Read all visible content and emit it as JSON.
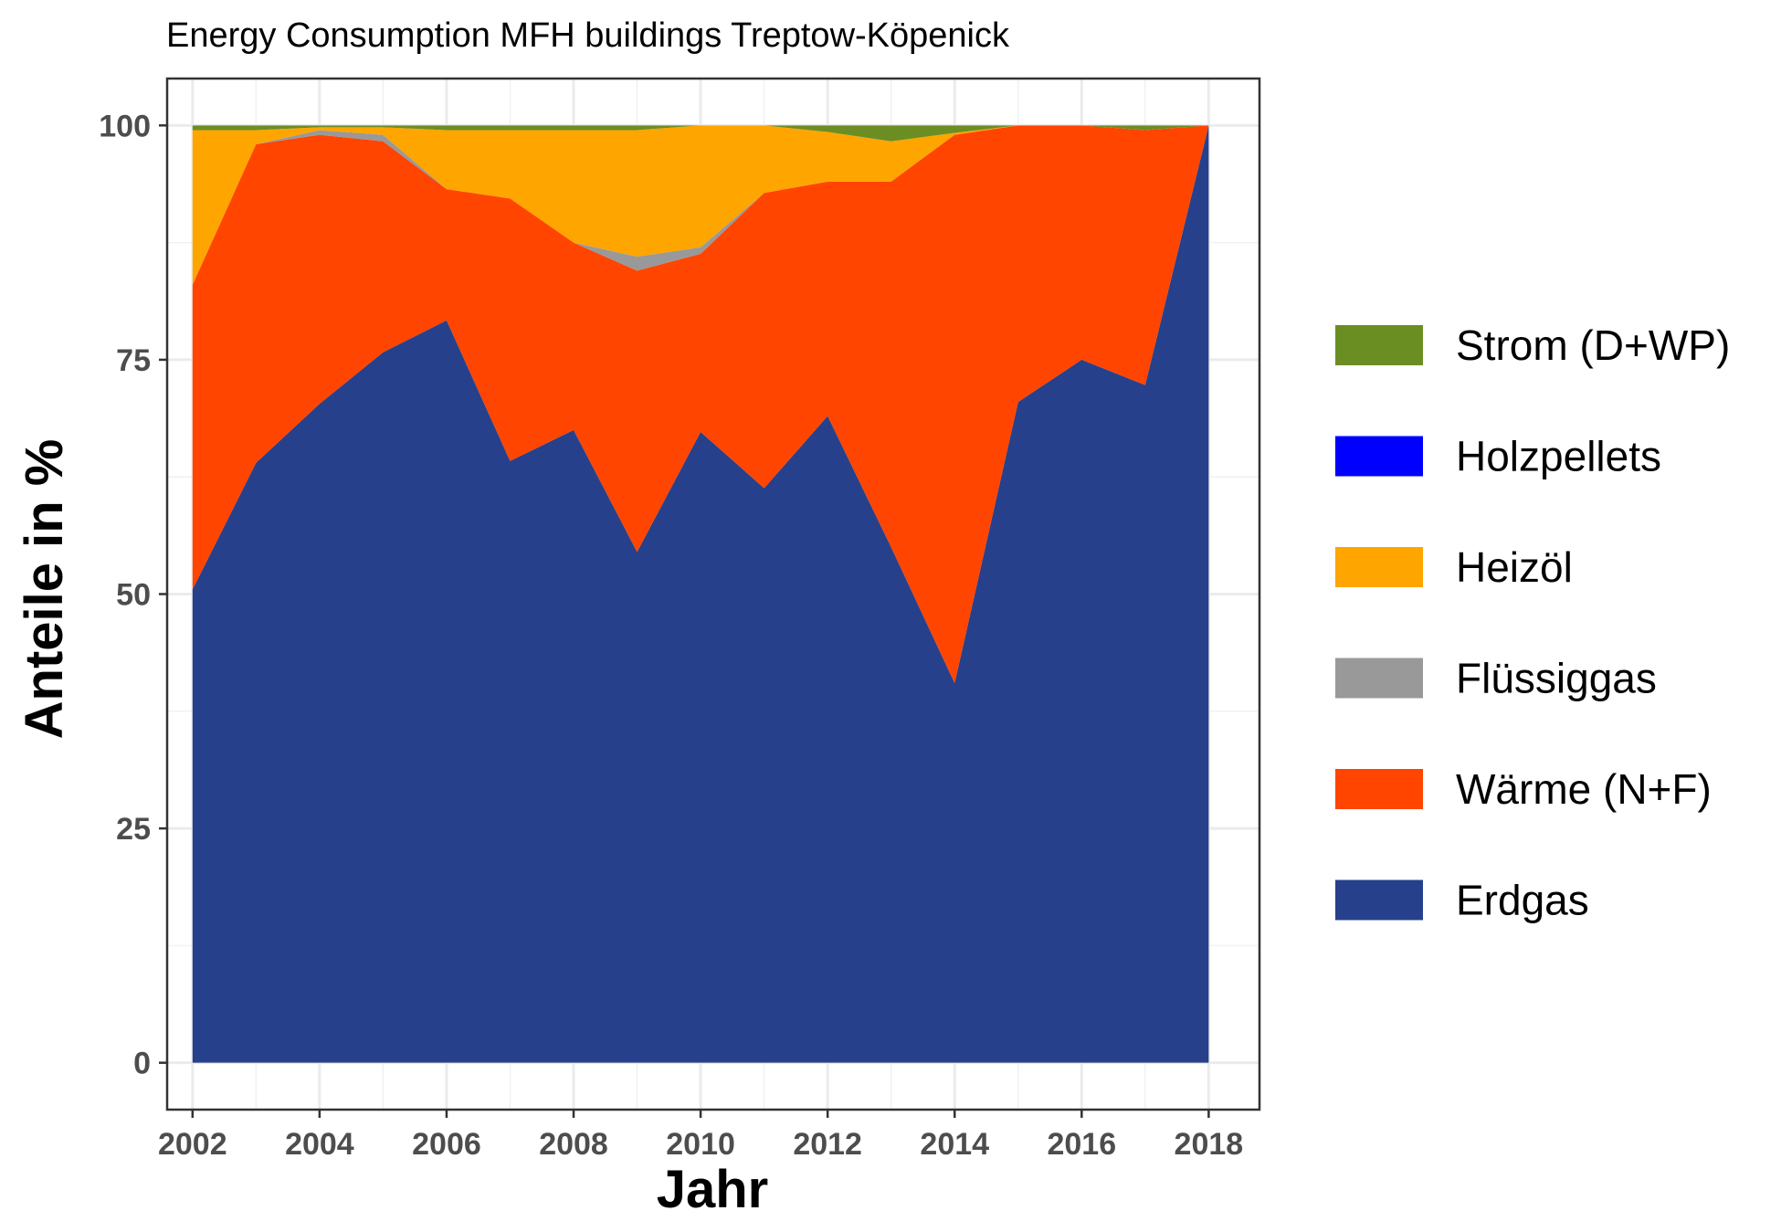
{
  "chart_data": {
    "type": "area",
    "stacked": true,
    "title": "Energy Consumption MFH buildings Treptow-Köpenick",
    "xlabel": "Jahr",
    "ylabel": "Anteile in %",
    "xlim": [
      2001.6,
      2018.8
    ],
    "ylim": [
      -5,
      105
    ],
    "xticks": [
      2002,
      2004,
      2006,
      2008,
      2010,
      2012,
      2014,
      2016,
      2018
    ],
    "yticks": [
      0,
      25,
      50,
      75,
      100
    ],
    "xtick_labels": [
      "2002",
      "2004",
      "2006",
      "2008",
      "2010",
      "2012",
      "2014",
      "2016",
      "2018"
    ],
    "ytick_labels": [
      "0",
      "25",
      "50",
      "75",
      "100"
    ],
    "grid": true,
    "legend_position": "right",
    "x": [
      2002,
      2003,
      2004,
      2005,
      2006,
      2007,
      2008,
      2009,
      2010,
      2011,
      2012,
      2013,
      2014,
      2015,
      2016,
      2017,
      2018
    ],
    "series": [
      {
        "name": "Erdgas",
        "color": "#27408b",
        "values": [
          50.5,
          64,
          70.3,
          75.8,
          79.2,
          64.2,
          67.5,
          54.5,
          67.3,
          61.3,
          69,
          55,
          40.5,
          70.5,
          75,
          72.3,
          100
        ]
      },
      {
        "name": "Wärme (N+F)",
        "color": "#ff4500",
        "values": [
          32.5,
          34,
          28.7,
          22.5,
          14,
          28,
          20,
          30,
          19,
          31.5,
          25,
          39,
          58.5,
          29.5,
          25,
          27.2,
          0
        ]
      },
      {
        "name": "Flüssiggas",
        "color": "#999999",
        "values": [
          0,
          0,
          0.5,
          0.7,
          0,
          0,
          0,
          1.5,
          0.7,
          0,
          0,
          0,
          0,
          0,
          0,
          0,
          0
        ]
      },
      {
        "name": "Heizöl",
        "color": "#ffa500",
        "values": [
          16.5,
          1.5,
          0.3,
          0.8,
          6.3,
          7.3,
          12,
          13.5,
          13,
          7.2,
          5.3,
          4.3,
          0.2,
          0,
          0,
          0,
          0
        ]
      },
      {
        "name": "Holzpellets",
        "color": "#0000ff",
        "values": [
          0,
          0,
          0,
          0,
          0,
          0,
          0,
          0,
          0,
          0,
          0,
          0,
          0,
          0,
          0,
          0,
          0
        ]
      },
      {
        "name": "Strom (D+WP)",
        "color": "#6b8e23",
        "values": [
          0.5,
          0.5,
          0.2,
          0.2,
          0.5,
          0.5,
          0.5,
          0.5,
          0,
          0,
          0.7,
          1.7,
          0.8,
          0,
          0,
          0.5,
          0
        ]
      }
    ],
    "legend_order": [
      "Strom (D+WP)",
      "Holzpellets",
      "Heizöl",
      "Flüssiggas",
      "Wärme (N+F)",
      "Erdgas"
    ]
  }
}
